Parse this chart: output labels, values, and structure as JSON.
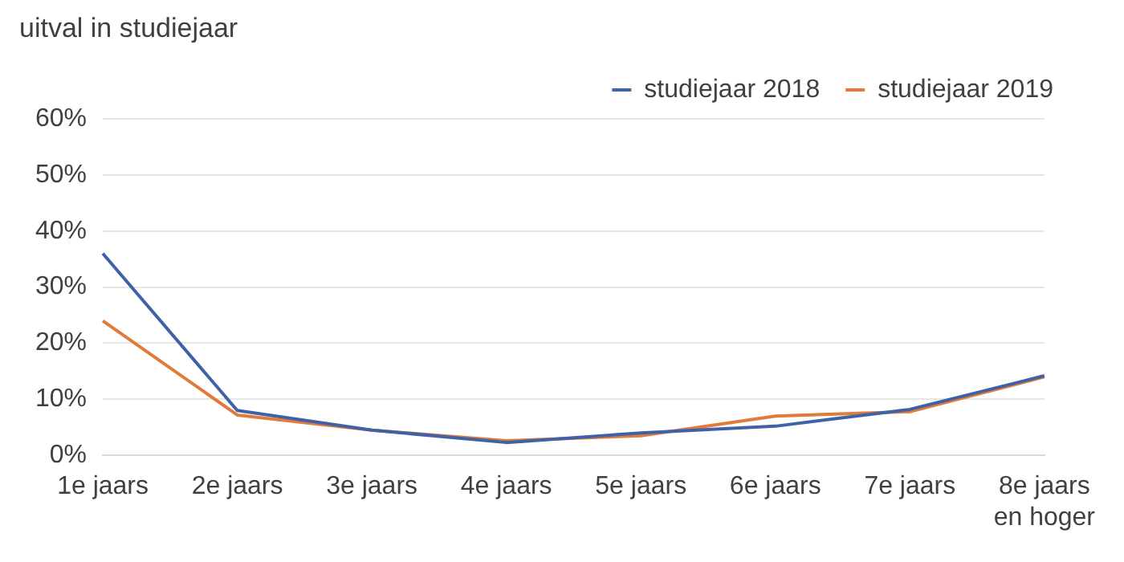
{
  "chart_data": {
    "type": "line",
    "title": "uitval in studiejaar",
    "categories": [
      "1e jaars",
      "2e jaars",
      "3e jaars",
      "4e jaars",
      "5e jaars",
      "6e jaars",
      "7e jaars",
      "8e jaars en hoger"
    ],
    "series": [
      {
        "name": "studiejaar 2018",
        "color": "#3f62a6",
        "values": [
          36,
          8,
          4.5,
          2.3,
          4,
          5.2,
          8.2,
          14.2
        ]
      },
      {
        "name": "studiejaar 2019",
        "color": "#e07b39",
        "values": [
          24,
          7.2,
          4.5,
          2.6,
          3.5,
          7,
          7.8,
          14
        ]
      }
    ],
    "ylim": [
      0,
      60
    ],
    "yticks": [
      {
        "value": 0,
        "label": "0%"
      },
      {
        "value": 10,
        "label": "10%"
      },
      {
        "value": 20,
        "label": "20%"
      },
      {
        "value": 30,
        "label": "30%"
      },
      {
        "value": 40,
        "label": "40%"
      },
      {
        "value": 50,
        "label": "50%"
      },
      {
        "value": 60,
        "label": "60%"
      }
    ],
    "grid": "y",
    "legend": "top right",
    "marker": "none",
    "line_style": "solid"
  }
}
